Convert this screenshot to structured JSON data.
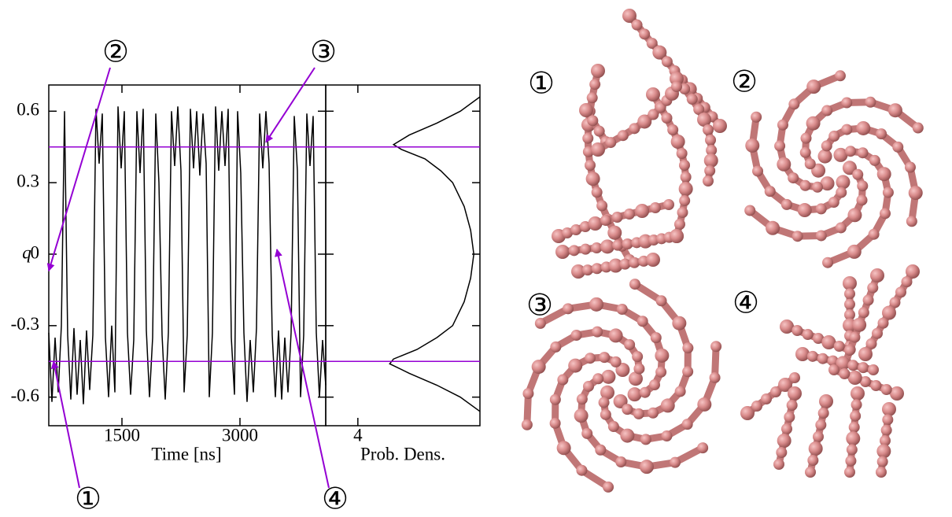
{
  "chart_data": [
    {
      "type": "line",
      "xlabel": "Time [ns]",
      "ylabel": "q",
      "xlim": [
        570,
        4090
      ],
      "ylim": [
        -0.72,
        0.71
      ],
      "xticks": [
        1500,
        3000
      ],
      "yticks": [
        0.6,
        0.3,
        0,
        -0.3,
        -0.6
      ],
      "color": "#000000",
      "hline_color": "#9400d3",
      "hlines": [
        0.45,
        -0.45
      ],
      "x": [
        570,
        610,
        650,
        690,
        730,
        770,
        810,
        850,
        890,
        930,
        970,
        1010,
        1050,
        1090,
        1130,
        1170,
        1210,
        1250,
        1290,
        1330,
        1370,
        1410,
        1450,
        1490,
        1530,
        1570,
        1610,
        1650,
        1690,
        1730,
        1770,
        1810,
        1850,
        1890,
        1930,
        1970,
        2010,
        2050,
        2090,
        2130,
        2170,
        2210,
        2250,
        2290,
        2330,
        2370,
        2410,
        2450,
        2490,
        2530,
        2570,
        2610,
        2650,
        2690,
        2730,
        2770,
        2810,
        2850,
        2890,
        2930,
        2970,
        3010,
        3050,
        3090,
        3130,
        3170,
        3210,
        3250,
        3290,
        3330,
        3370,
        3410,
        3450,
        3490,
        3530,
        3570,
        3610,
        3650,
        3690,
        3730,
        3770,
        3810,
        3850,
        3890,
        3930,
        3970,
        4010,
        4050,
        4090
      ],
      "values": [
        -0.33,
        -0.62,
        -0.35,
        -0.58,
        -0.3,
        0.6,
        -0.34,
        -0.61,
        -0.31,
        -0.59,
        -0.36,
        -0.63,
        -0.32,
        -0.57,
        -0.34,
        0.61,
        0.38,
        0.59,
        -0.35,
        -0.6,
        -0.3,
        -0.58,
        0.62,
        0.36,
        0.6,
        -0.33,
        -0.59,
        -0.36,
        0.6,
        0.34,
        0.61,
        -0.32,
        -0.6,
        -0.35,
        0.59,
        0.3,
        -0.34,
        -0.61,
        -0.33,
        0.6,
        0.37,
        0.62,
        0.35,
        -0.58,
        -0.34,
        0.61,
        0.36,
        0.6,
        0.33,
        0.59,
        0.38,
        -0.6,
        -0.33,
        0.62,
        0.35,
        0.6,
        0.37,
        0.61,
        -0.35,
        -0.59,
        0.6,
        0.34,
        -0.33,
        -0.62,
        -0.36,
        -0.58,
        -0.31,
        0.59,
        0.36,
        0.6,
        0.38,
        -0.34,
        -0.6,
        -0.32,
        -0.61,
        -0.35,
        -0.58,
        -0.33,
        0.58,
        0.35,
        -0.6,
        -0.34,
        0.59,
        0.37,
        0.58,
        -0.33,
        -0.6,
        -0.36,
        -0.55
      ],
      "annotations": [
        {
          "label": "①",
          "x": 630,
          "y": -0.45
        },
        {
          "label": "②",
          "x": 570,
          "y": -0.07
        },
        {
          "label": "③",
          "x": 3330,
          "y": 0.47
        },
        {
          "label": "④",
          "x": 3470,
          "y": 0.02
        }
      ]
    },
    {
      "type": "line",
      "orientation": "horizontal",
      "xlabel": "Prob. Dens.",
      "xlim": [
        3,
        7.8
      ],
      "ylim": [
        -0.72,
        0.71
      ],
      "xticks": [
        4
      ],
      "yticks": [
        0.6,
        0.3,
        0,
        -0.3,
        -0.6
      ],
      "color": "#000000",
      "hline_color": "#9400d3",
      "hlines": [
        0.45,
        -0.45
      ],
      "y": [
        0.66,
        0.6,
        0.55,
        0.5,
        0.46,
        0.44,
        0.4,
        0.35,
        0.3,
        0.2,
        0.1,
        0,
        -0.1,
        -0.2,
        -0.3,
        -0.35,
        -0.4,
        -0.44,
        -0.46,
        -0.5,
        -0.55,
        -0.6,
        -0.66
      ],
      "values": [
        7.8,
        7.19,
        6.46,
        5.6,
        5.11,
        5.35,
        6.09,
        6.58,
        6.95,
        7.31,
        7.51,
        7.61,
        7.51,
        7.31,
        6.95,
        6.46,
        5.84,
        5.11,
        4.99,
        5.6,
        6.46,
        7.19,
        7.8
      ]
    }
  ]
}
